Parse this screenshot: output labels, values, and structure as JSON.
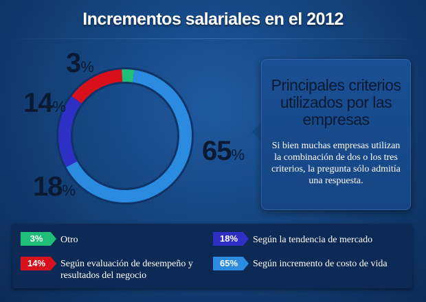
{
  "header": {
    "title": "Incrementos salariales en el 2012"
  },
  "info": {
    "heading": "Principales criterios utilizados por las empresas",
    "body": "Si bien muchas empresas utilizan la combinación de dos o los tres criterios, la pregunta sólo admitía una respuesta."
  },
  "chart_data": {
    "type": "pie",
    "style": "donut",
    "unit": "%",
    "title": "",
    "slices": [
      {
        "value": 65,
        "label_value": "65",
        "legend_tag": "65%",
        "legend": "Según incremento de costo de vida",
        "color": "#2a8be0"
      },
      {
        "value": 18,
        "label_value": "18",
        "legend_tag": "18%",
        "legend": "Según la tendencia de mercado",
        "color": "#2e2fc4"
      },
      {
        "value": 14,
        "label_value": "14",
        "legend_tag": "14%",
        "legend": "Según evaluación de desempeño y resultados del negocio",
        "color": "#d8101c"
      },
      {
        "value": 3,
        "label_value": "3",
        "legend_tag": "3%",
        "legend": "Otro",
        "color": "#1fbf7a"
      }
    ]
  }
}
